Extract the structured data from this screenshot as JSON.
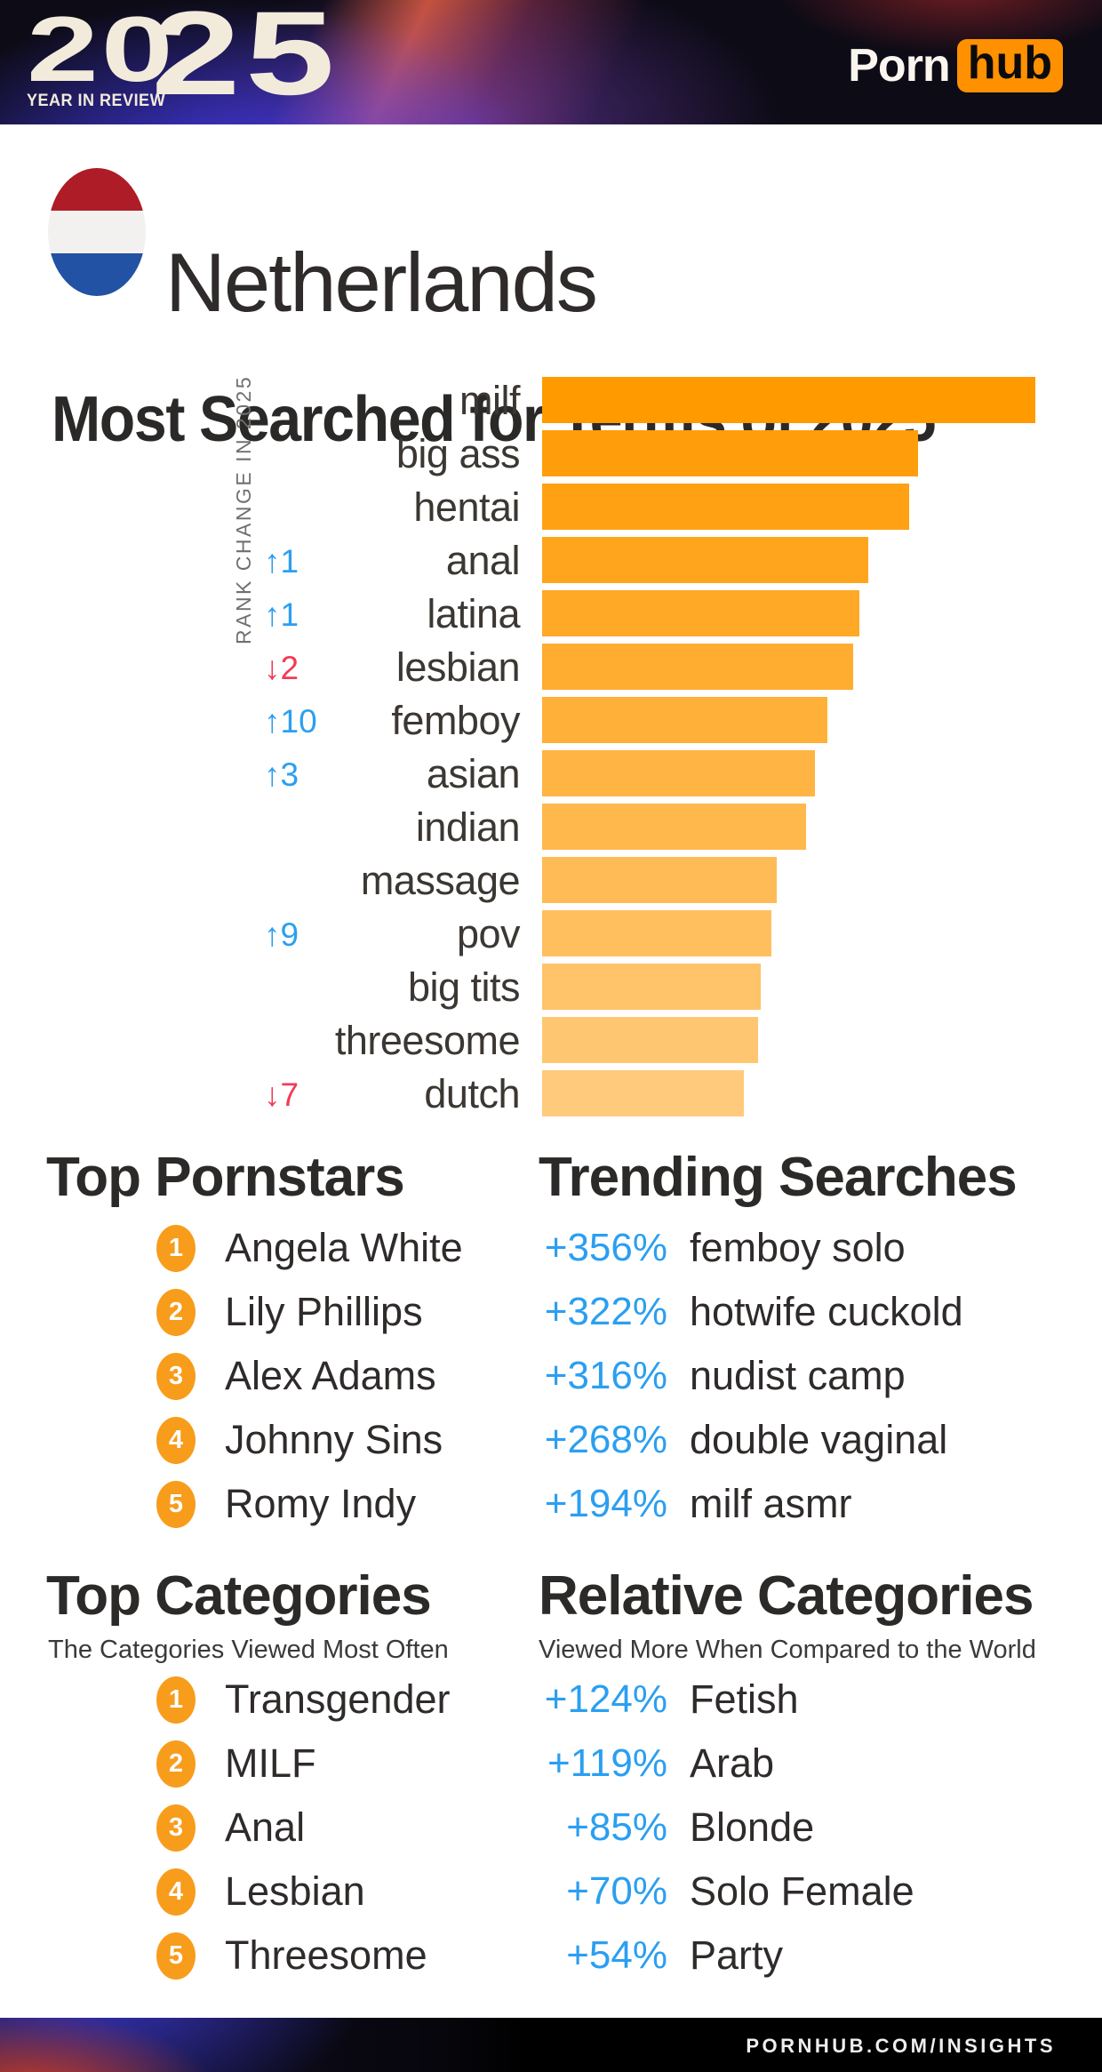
{
  "header": {
    "year": "2025",
    "year_parts": [
      "20",
      "25"
    ],
    "tagline": "YEAR IN REVIEW",
    "brand_left": "Porn",
    "brand_right": "hub"
  },
  "country": {
    "name": "Netherlands",
    "flag": {
      "top_color": "#AE1C28",
      "middle_color": "#F2F1EF",
      "bottom_color": "#2152A3"
    }
  },
  "page_title": "Most Searched for Terms of 2025",
  "chart_data": {
    "type": "bar",
    "orientation": "horizontal",
    "title": "Most Searched for Terms of 2025",
    "axis_label": "RANK CHANGE IN 2025",
    "value_unit": "relative search volume, top term = 100",
    "xlim": [
      0,
      100
    ],
    "grid": false,
    "rank_up_color": "#2B9FF0",
    "rank_down_color": "#F23B55",
    "categories": [
      "milf",
      "big ass",
      "hentai",
      "anal",
      "latina",
      "lesbian",
      "femboy",
      "asian",
      "indian",
      "massage",
      "pov",
      "big tits",
      "threesome",
      "dutch"
    ],
    "bars": [
      {
        "term": "milf",
        "value": 100,
        "rank_change": "",
        "rank_dir": "",
        "color": "#FF9A00"
      },
      {
        "term": "big ass",
        "value": 76.2,
        "rank_change": "",
        "rank_dir": "",
        "color": "#FF9E0A"
      },
      {
        "term": "hentai",
        "value": 74.4,
        "rank_change": "",
        "rank_dir": "",
        "color": "#FFA113"
      },
      {
        "term": "anal",
        "value": 66.1,
        "rank_change": "↑1",
        "rank_dir": "up",
        "color": "#FFA51D"
      },
      {
        "term": "latina",
        "value": 64.3,
        "rank_change": "↑1",
        "rank_dir": "up",
        "color": "#FFA926"
      },
      {
        "term": "lesbian",
        "value": 63.1,
        "rank_change": "↓2",
        "rank_dir": "down",
        "color": "#FFAD30"
      },
      {
        "term": "femboy",
        "value": 57.8,
        "rank_change": "↑10",
        "rank_dir": "up",
        "color": "#FFB039"
      },
      {
        "term": "asian",
        "value": 55.3,
        "rank_change": "↑3",
        "rank_dir": "up",
        "color": "#FFB443"
      },
      {
        "term": "indian",
        "value": 53.5,
        "rank_change": "",
        "rank_dir": "",
        "color": "#FFB84C"
      },
      {
        "term": "massage",
        "value": 47.6,
        "rank_change": "",
        "rank_dir": "",
        "color": "#FFBB56"
      },
      {
        "term": "pov",
        "value": 46.5,
        "rank_change": "↑9",
        "rank_dir": "up",
        "color": "#FFBF5F"
      },
      {
        "term": "big tits",
        "value": 44.3,
        "rank_change": "",
        "rank_dir": "",
        "color": "#FFC369"
      },
      {
        "term": "threesome",
        "value": 43.8,
        "rank_change": "",
        "rank_dir": "",
        "color": "#FFC672"
      },
      {
        "term": "dutch",
        "value": 40.9,
        "rank_change": "↓7",
        "rank_dir": "down",
        "color": "#FFCA7C"
      }
    ]
  },
  "sections": {
    "top_pornstars": {
      "title": "Top Pornstars",
      "items": [
        {
          "rank": "1",
          "name": "Angela White"
        },
        {
          "rank": "2",
          "name": "Lily Phillips"
        },
        {
          "rank": "3",
          "name": "Alex Adams"
        },
        {
          "rank": "4",
          "name": "Johnny Sins"
        },
        {
          "rank": "5",
          "name": "Romy Indy"
        }
      ]
    },
    "trending_searches": {
      "title": "Trending Searches",
      "items": [
        {
          "value": "+356%",
          "term": "femboy solo"
        },
        {
          "value": "+322%",
          "term": "hotwife cuckold"
        },
        {
          "value": "+316%",
          "term": "nudist camp"
        },
        {
          "value": "+268%",
          "term": "double vaginal"
        },
        {
          "value": "+194%",
          "term": "milf asmr"
        }
      ]
    },
    "top_categories": {
      "title": "Top Categories",
      "subtitle": "The Categories Viewed Most Often",
      "items": [
        {
          "rank": "1",
          "name": "Transgender"
        },
        {
          "rank": "2",
          "name": "MILF"
        },
        {
          "rank": "3",
          "name": "Anal"
        },
        {
          "rank": "4",
          "name": "Lesbian"
        },
        {
          "rank": "5",
          "name": "Threesome"
        }
      ]
    },
    "relative_categories": {
      "title": "Relative Categories",
      "subtitle": "Viewed More When Compared to the World",
      "items": [
        {
          "value": "+124%",
          "term": "Fetish"
        },
        {
          "value": "+119%",
          "term": "Arab"
        },
        {
          "value": "+85%",
          "term": "Blonde"
        },
        {
          "value": "+70%",
          "term": "Solo Female"
        },
        {
          "value": "+54%",
          "term": "Party"
        }
      ]
    }
  },
  "footer": {
    "url": "PORNHUB.COM/INSIGHTS"
  },
  "colors": {
    "accent_orange": "#F89C1B",
    "brand_orange": "#FF9000",
    "accent_blue": "#2B9FF0",
    "accent_red": "#F23B55",
    "text_dark": "#2D2A28"
  }
}
